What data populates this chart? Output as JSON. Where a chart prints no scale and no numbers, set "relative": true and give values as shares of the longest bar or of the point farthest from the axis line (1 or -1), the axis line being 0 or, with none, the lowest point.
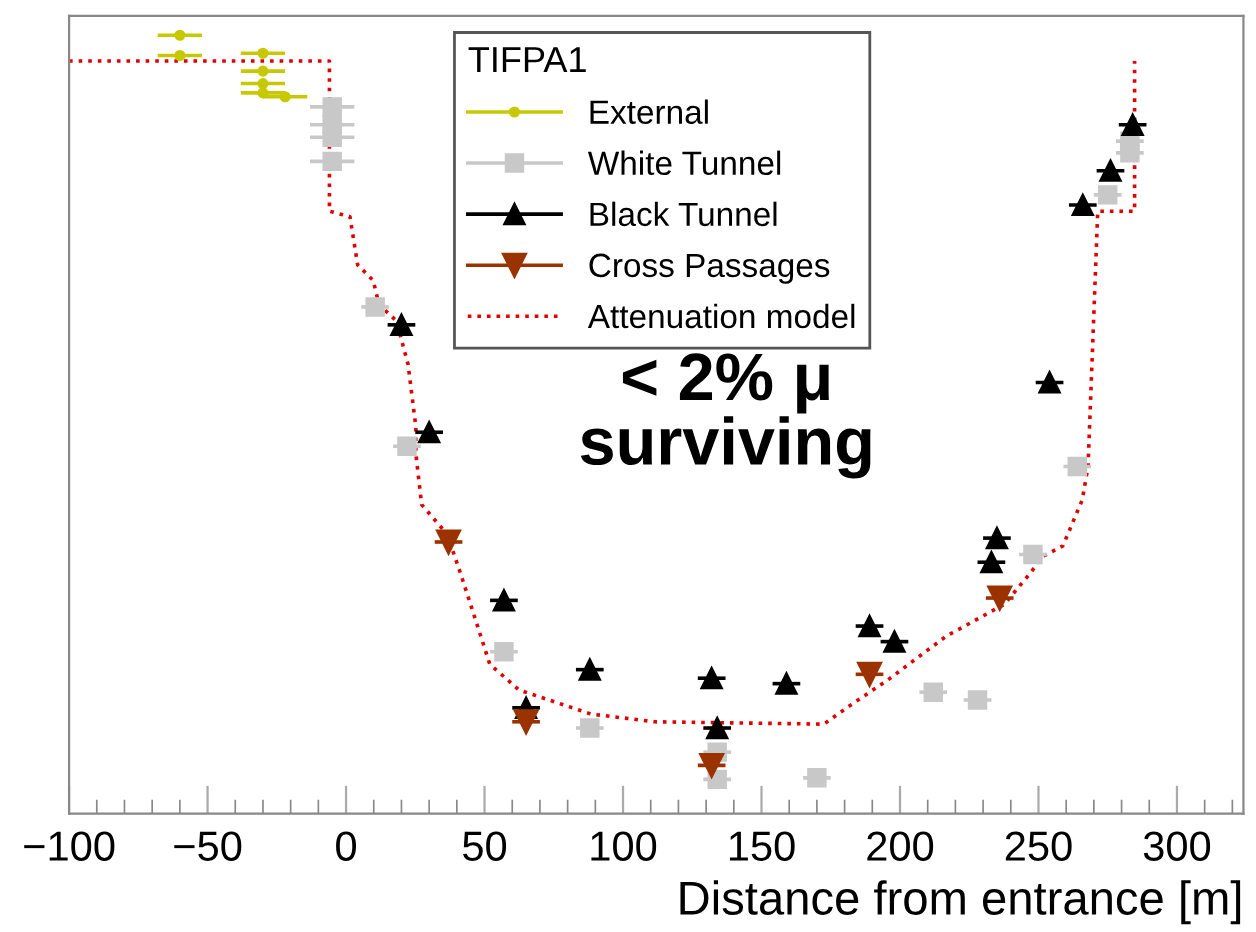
{
  "chart_data": {
    "type": "scatter",
    "relative": true,
    "xlabel": "Distance from entrance [m]",
    "legend_title": "TIFPA1",
    "legend": "top",
    "grid": false,
    "xlim": [
      -100,
      324
    ],
    "xticks": [
      {
        "value": -100,
        "label": "−100"
      },
      {
        "value": -50,
        "label": "−50"
      },
      0,
      50,
      100,
      150,
      200,
      250,
      300
    ],
    "annotations": [
      "< 2% μ\nsurviving"
    ],
    "series": [
      {
        "name": "External",
        "color": "#c8c800",
        "marker": "circle",
        "x": [
          -60,
          -60,
          -30,
          -30,
          -30,
          -30,
          -22
        ],
        "values": [
          1.0,
          0.974,
          0.977,
          0.954,
          0.938,
          0.926,
          0.921
        ],
        "xerrors": [
          8,
          8,
          8,
          8,
          8,
          8,
          8
        ]
      },
      {
        "name": "White Tunnel",
        "color": "#c8c8c8",
        "marker": "square",
        "x": [
          -5,
          -5,
          -5,
          -5,
          10.5,
          22,
          57,
          88,
          134,
          134,
          170,
          212,
          228,
          248,
          264,
          275,
          283,
          283
        ],
        "values": [
          0.908,
          0.885,
          0.869,
          0.838,
          0.651,
          0.472,
          0.208,
          0.11,
          0.079,
          0.044,
          0.046,
          0.156,
          0.146,
          0.333,
          0.446,
          0.795,
          0.864,
          0.849
        ],
        "xerrors": [
          8,
          8,
          8,
          8,
          5,
          5,
          5,
          5,
          5,
          5,
          5,
          5,
          5,
          5,
          5,
          5,
          5,
          5
        ]
      },
      {
        "name": "Black Tunnel",
        "color": "#000000",
        "marker": "triangle",
        "x": [
          20,
          30,
          57,
          65,
          88,
          132,
          134,
          159,
          189,
          198,
          235,
          233,
          254,
          266,
          276,
          284
        ],
        "values": [
          0.628,
          0.49,
          0.274,
          0.136,
          0.185,
          0.174,
          0.11,
          0.167,
          0.241,
          0.221,
          0.354,
          0.323,
          0.554,
          0.782,
          0.826,
          0.885
        ],
        "xerrors": [
          5,
          5,
          5,
          5,
          5,
          5,
          5,
          5,
          5,
          5,
          5,
          5,
          5,
          5,
          5,
          5
        ]
      },
      {
        "name": "Cross Passages",
        "color": "#9a3300",
        "marker": "triangle_down",
        "x": [
          37,
          65,
          132,
          189,
          236
        ],
        "values": [
          0.349,
          0.118,
          0.062,
          0.179,
          0.277
        ],
        "xerrors": [
          5,
          5,
          5,
          5,
          5
        ]
      },
      {
        "name": "Attenuation model",
        "type": "line",
        "color": "#e00000",
        "marker": "none",
        "line_style": "dotted",
        "x": [
          -100,
          -6,
          -6,
          1.4,
          4.2,
          9.8,
          11.9,
          18.2,
          22.4,
          25.2,
          25.2,
          27.3,
          36.5,
          41.4,
          51.9,
          62.4,
          88.4,
          111.5,
          172.5,
          181.6,
          195.7,
          216.7,
          237.7,
          246.8,
          251.8,
          258.8,
          265.8,
          267.9,
          271.4,
          284.7,
          284.7
        ],
        "values": [
          0.967,
          0.967,
          0.774,
          0.767,
          0.705,
          0.685,
          0.654,
          0.633,
          0.577,
          0.497,
          0.462,
          0.397,
          0.359,
          0.308,
          0.192,
          0.159,
          0.128,
          0.118,
          0.115,
          0.138,
          0.172,
          0.228,
          0.269,
          0.308,
          0.331,
          0.344,
          0.403,
          0.446,
          0.774,
          0.774,
          0.967
        ]
      }
    ]
  }
}
